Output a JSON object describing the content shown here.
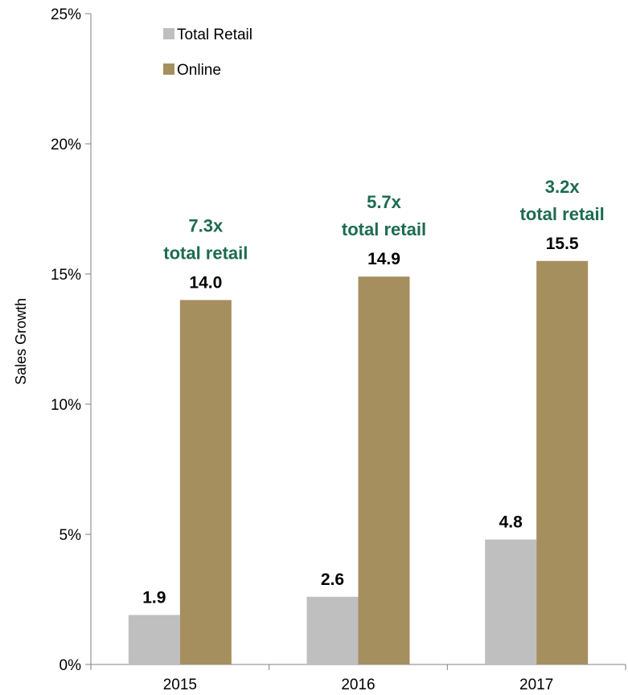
{
  "chart_data": {
    "type": "bar",
    "title": "",
    "xlabel": "",
    "ylabel": "Sales Growth",
    "categories": [
      "2015",
      "2016",
      "2017"
    ],
    "series": [
      {
        "name": "Total Retail",
        "values": [
          1.9,
          2.6,
          4.8
        ],
        "labels": [
          "1.9",
          "2.6",
          "4.8"
        ]
      },
      {
        "name": "Online",
        "values": [
          14.0,
          14.9,
          15.5
        ],
        "labels": [
          "14.0",
          "14.9",
          "15.5"
        ]
      }
    ],
    "ylim": [
      0,
      25
    ],
    "yticks": [
      0,
      5,
      10,
      15,
      20,
      25
    ],
    "ytick_labels": [
      "0%",
      "5%",
      "10%",
      "15%",
      "20%",
      "25%"
    ],
    "grid": false,
    "legend_position": "top-left",
    "annotations": [
      {
        "category": "2015",
        "lines": [
          "7.3x",
          "total retail"
        ]
      },
      {
        "category": "2016",
        "lines": [
          "5.7x",
          "total retail"
        ]
      },
      {
        "category": "2017",
        "lines": [
          "3.2x",
          "total retail"
        ]
      }
    ],
    "colors": {
      "total_retail": "#bfbfbf",
      "online": "#a68f5e",
      "annotation": "#1d6b4f",
      "axis": "#808080"
    }
  }
}
